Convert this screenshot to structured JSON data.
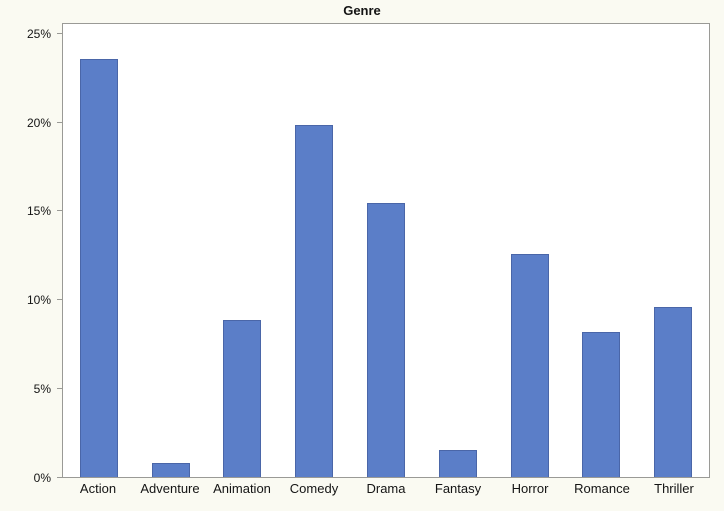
{
  "chart_data": {
    "type": "bar",
    "title": "Genre",
    "xlabel": "",
    "ylabel": "",
    "categories": [
      "Action",
      "Adventure",
      "Animation",
      "Comedy",
      "Drama",
      "Fantasy",
      "Horror",
      "Romance",
      "Thriller"
    ],
    "values": [
      23.6,
      0.8,
      8.9,
      19.9,
      15.5,
      1.5,
      12.6,
      8.2,
      9.6
    ],
    "y_ticks": [
      "0%",
      "5%",
      "10%",
      "15%",
      "20%",
      "25%"
    ],
    "y_tick_values": [
      0,
      5,
      10,
      15,
      20,
      25
    ],
    "ylim": [
      0,
      25.6
    ],
    "grid": false,
    "legend": "none",
    "bar_color": "#5B7EC8",
    "bar_border_color": "#4a66a8",
    "background_color": "#FAFAF2",
    "plot_background_color": "#FFFFFF",
    "axis_color": "#9a9a96"
  }
}
